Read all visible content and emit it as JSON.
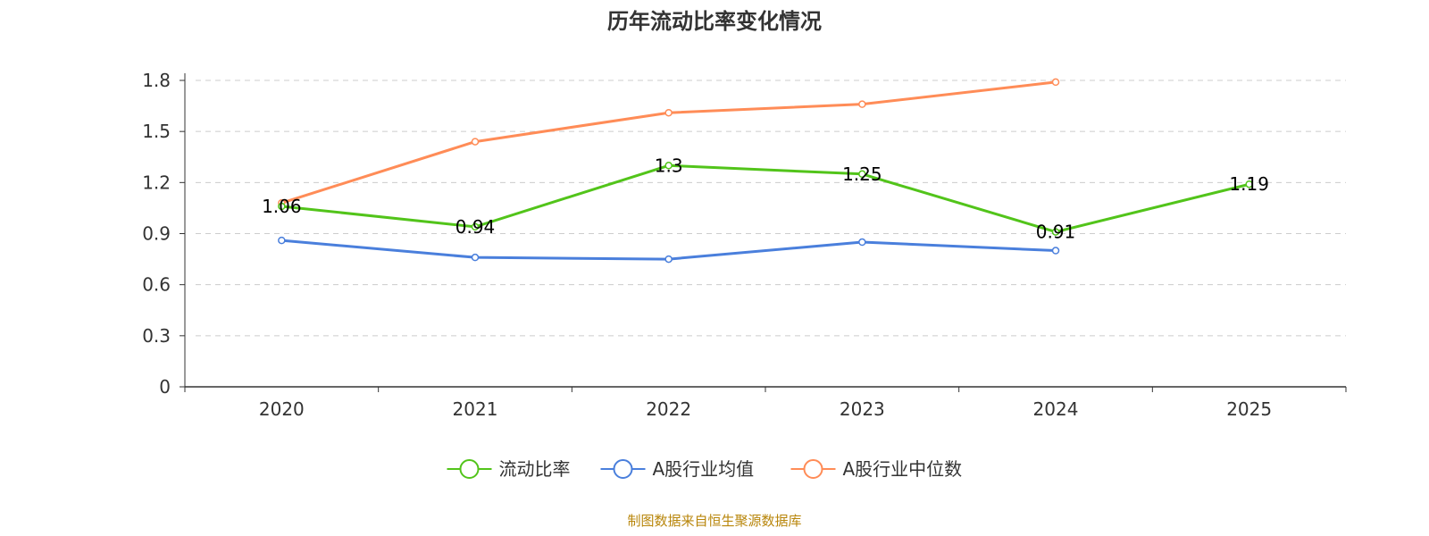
{
  "chart_data": {
    "type": "line",
    "title": "历年流动比率变化情况",
    "categories": [
      "2020",
      "2021",
      "2022",
      "2023",
      "2024",
      "2025"
    ],
    "ylim": [
      0,
      1.8
    ],
    "yticks": [
      "0",
      "0.3",
      "0.6",
      "0.9",
      "1.2",
      "1.5",
      "1.8"
    ],
    "grid": true,
    "legend_position": "bottom-center",
    "series": [
      {
        "name": "流动比率",
        "color": "#52c41a",
        "values": [
          1.06,
          0.94,
          1.3,
          1.25,
          0.91,
          1.19
        ],
        "labels": [
          "1.06",
          "0.94",
          "1.3",
          "1.25",
          "0.91",
          "1.19"
        ],
        "show_labels": true
      },
      {
        "name": "A股行业均值",
        "color": "#4a7fdc",
        "values": [
          0.86,
          0.76,
          0.75,
          0.85,
          0.8,
          null
        ],
        "show_labels": false
      },
      {
        "name": "A股行业中位数",
        "color": "#ff8c57",
        "values": [
          1.08,
          1.44,
          1.61,
          1.66,
          1.79,
          null
        ],
        "show_labels": false
      }
    ],
    "source": "制图数据来自恒生聚源数据库"
  }
}
